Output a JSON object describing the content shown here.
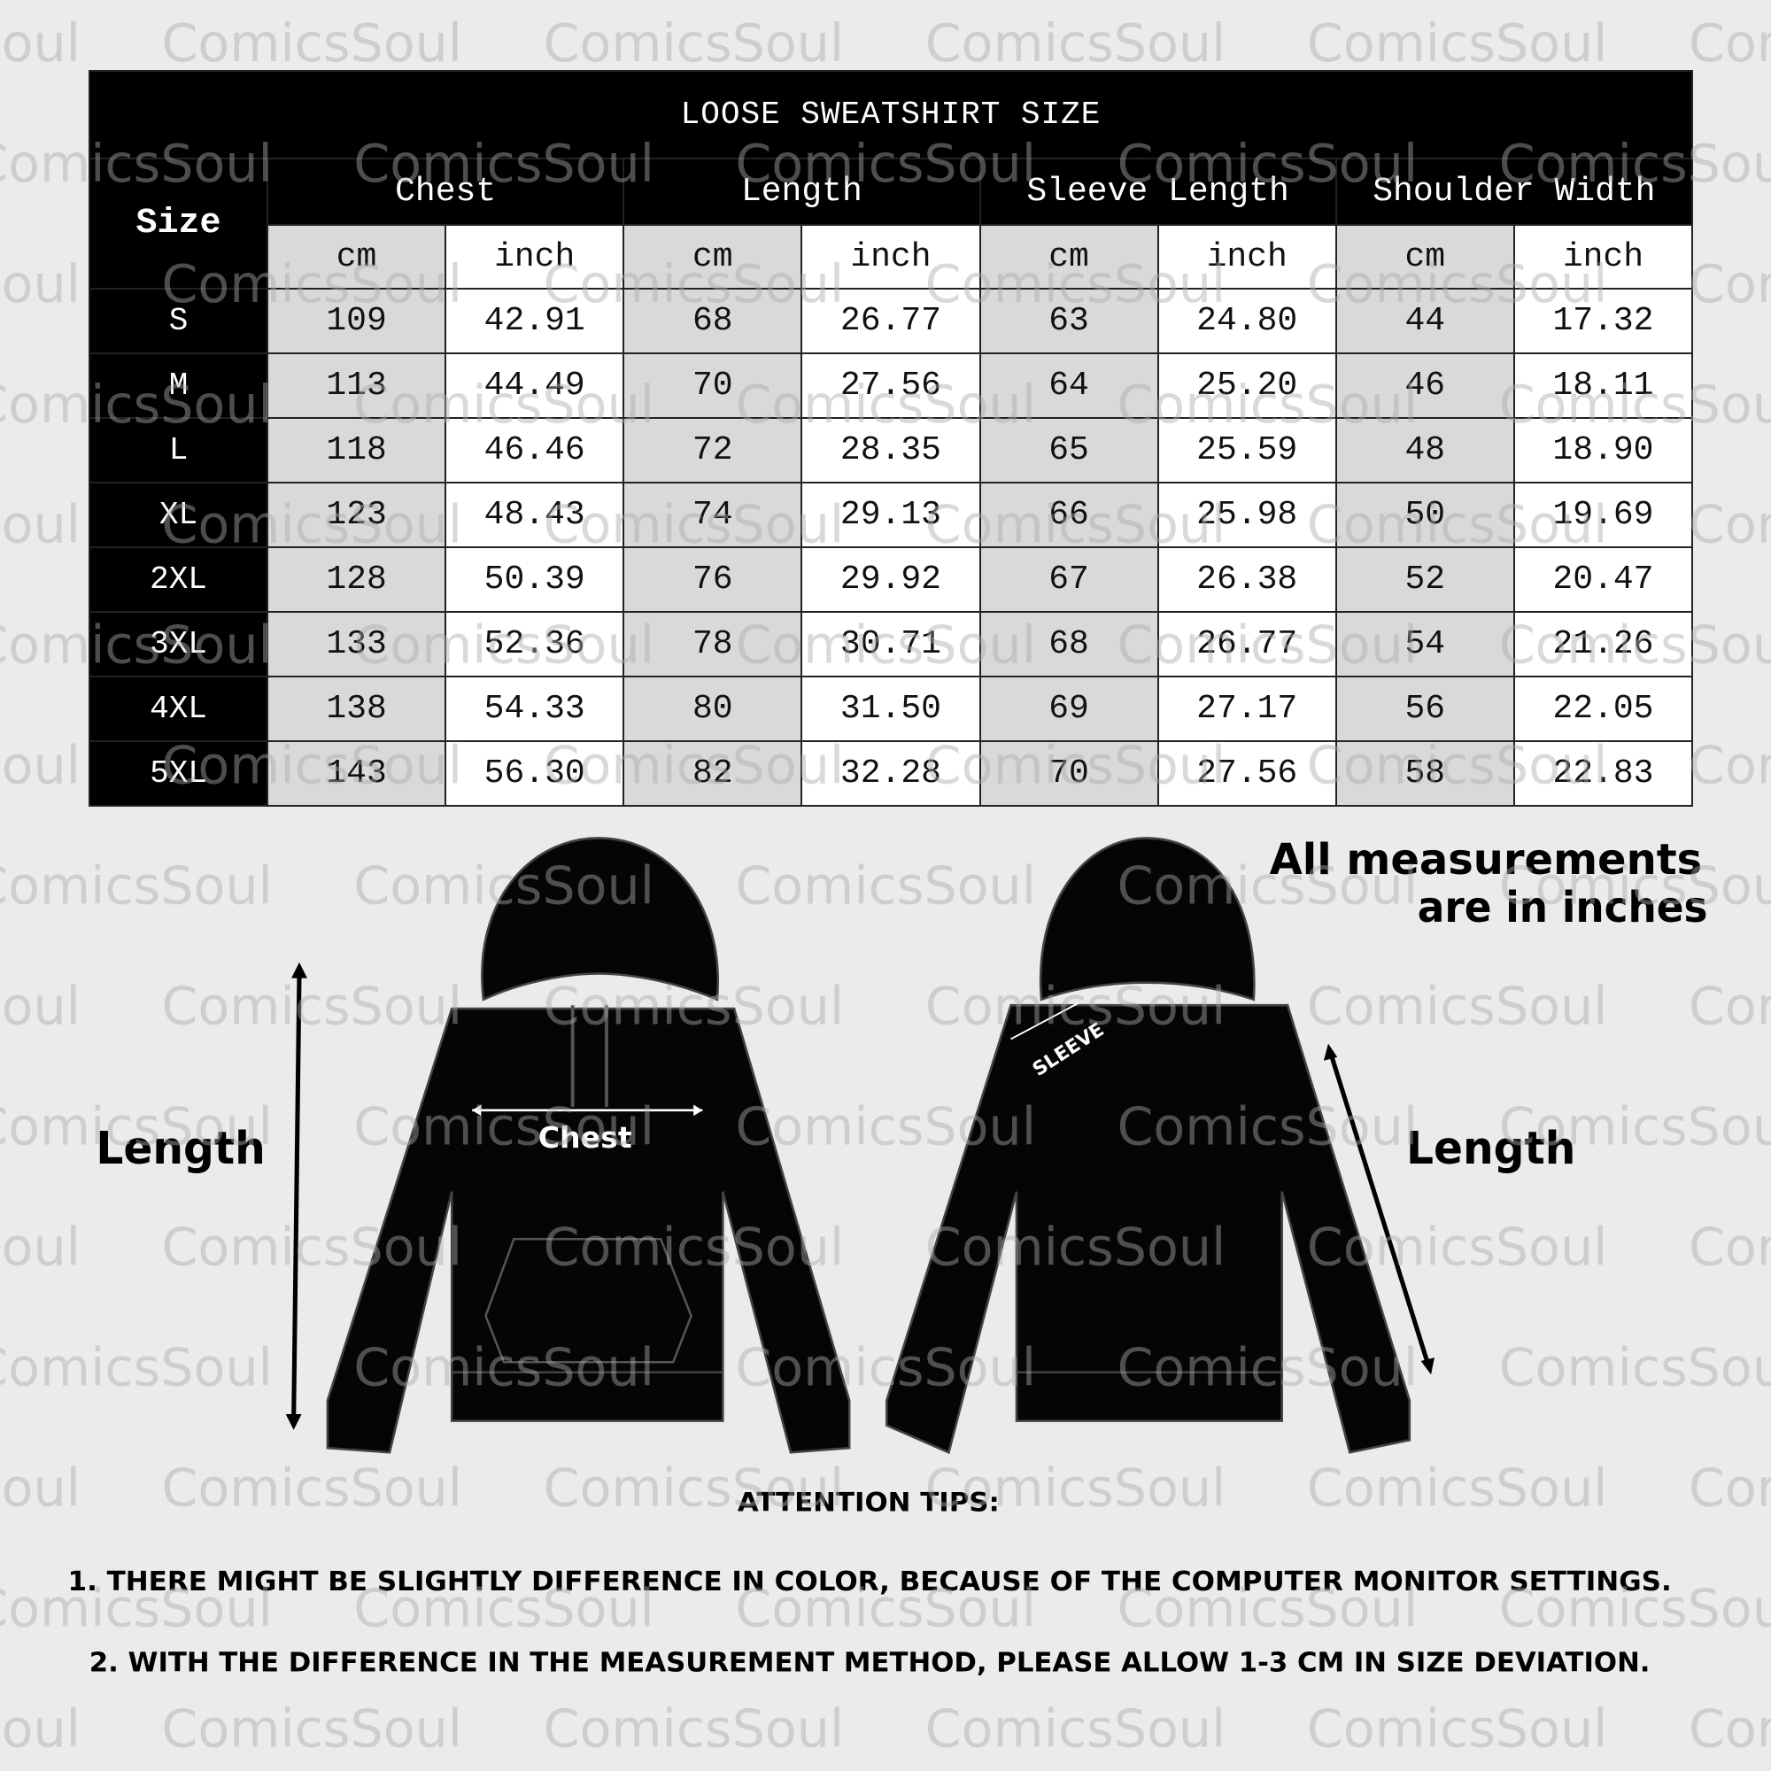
{
  "watermark": "ComicsSoul",
  "table": {
    "title": "LOOSE SWEATSHIRT SIZE",
    "size_header": "Size",
    "groups": [
      "Chest",
      "Length",
      "Sleeve Length",
      "Shoulder Width"
    ],
    "units": [
      "cm",
      "inch"
    ],
    "rows": [
      {
        "size": "S",
        "values": [
          "109",
          "42.91",
          "68",
          "26.77",
          "63",
          "24.80",
          "44",
          "17.32"
        ]
      },
      {
        "size": "M",
        "values": [
          "113",
          "44.49",
          "70",
          "27.56",
          "64",
          "25.20",
          "46",
          "18.11"
        ]
      },
      {
        "size": "L",
        "values": [
          "118",
          "46.46",
          "72",
          "28.35",
          "65",
          "25.59",
          "48",
          "18.90"
        ]
      },
      {
        "size": "XL",
        "values": [
          "123",
          "48.43",
          "74",
          "29.13",
          "66",
          "25.98",
          "50",
          "19.69"
        ]
      },
      {
        "size": "2XL",
        "values": [
          "128",
          "50.39",
          "76",
          "29.92",
          "67",
          "26.38",
          "52",
          "20.47"
        ]
      },
      {
        "size": "3XL",
        "values": [
          "133",
          "52.36",
          "78",
          "30.71",
          "68",
          "26.77",
          "54",
          "21.26"
        ]
      },
      {
        "size": "4XL",
        "values": [
          "138",
          "54.33",
          "80",
          "31.50",
          "69",
          "27.17",
          "56",
          "22.05"
        ]
      },
      {
        "size": "5XL",
        "values": [
          "143",
          "56.30",
          "82",
          "32.28",
          "70",
          "27.56",
          "58",
          "22.83"
        ]
      }
    ]
  },
  "illustration": {
    "note_line1": "All measurements",
    "note_line2": "are in inches",
    "front_length_label": "Length",
    "chest_label": "Chest",
    "sleeve_label": "SLEEVE",
    "back_length_label": "Length"
  },
  "tips": {
    "heading": "ATTENTION TIPS:",
    "items": [
      "1. THERE MIGHT BE SLIGHTLY DIFFERENCE IN COLOR, BECAUSE OF THE COMPUTER MONITOR SETTINGS.",
      "2. WITH THE DIFFERENCE IN THE MEASUREMENT METHOD, PLEASE ALLOW 1-3 CM IN SIZE DEVIATION."
    ]
  },
  "colors": {
    "background": "#ebebeb",
    "header": "#000000",
    "cm_cell": "#d9d9d9",
    "inch_cell": "#ffffff",
    "watermark": "#c8c8c8"
  }
}
